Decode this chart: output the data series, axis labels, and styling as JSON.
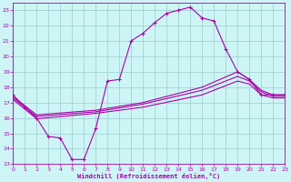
{
  "xlabel": "Windchill (Refroidissement éolien,°C)",
  "xlim": [
    0,
    23
  ],
  "ylim": [
    13,
    23.5
  ],
  "yticks": [
    13,
    14,
    15,
    16,
    17,
    18,
    19,
    20,
    21,
    22,
    23
  ],
  "xticks": [
    0,
    1,
    2,
    3,
    4,
    5,
    6,
    7,
    8,
    9,
    10,
    11,
    12,
    13,
    14,
    15,
    16,
    17,
    18,
    19,
    20,
    21,
    22,
    23
  ],
  "bg_color": "#cef5f5",
  "line_color": "#aa00aa",
  "grid_color": "#99cccc",
  "curve1_x": [
    0,
    1,
    2,
    3,
    4,
    5,
    6,
    7,
    8,
    9,
    10,
    11,
    12,
    13,
    14,
    15,
    16,
    17,
    18,
    19,
    20,
    21,
    22,
    23
  ],
  "curve1_y": [
    17.5,
    16.7,
    16.0,
    14.8,
    14.7,
    13.3,
    13.3,
    15.3,
    18.4,
    18.5,
    21.0,
    21.5,
    22.2,
    22.8,
    23.0,
    23.2,
    22.5,
    22.3,
    20.5,
    19.0,
    18.5,
    17.5,
    17.5,
    17.5
  ],
  "curve2_x": [
    0,
    2,
    7,
    11,
    16,
    19,
    20,
    21,
    22,
    23
  ],
  "curve2_y": [
    17.4,
    16.2,
    16.5,
    17.0,
    18.0,
    19.0,
    18.5,
    17.8,
    17.5,
    17.5
  ],
  "curve3_x": [
    0,
    2,
    7,
    11,
    16,
    19,
    20,
    21,
    22,
    23
  ],
  "curve3_y": [
    17.3,
    16.1,
    16.4,
    16.9,
    17.8,
    18.7,
    18.4,
    17.7,
    17.4,
    17.4
  ],
  "curve4_x": [
    0,
    2,
    7,
    11,
    16,
    19,
    20,
    21,
    22,
    23
  ],
  "curve4_y": [
    17.2,
    15.95,
    16.3,
    16.7,
    17.5,
    18.4,
    18.2,
    17.5,
    17.3,
    17.3
  ]
}
